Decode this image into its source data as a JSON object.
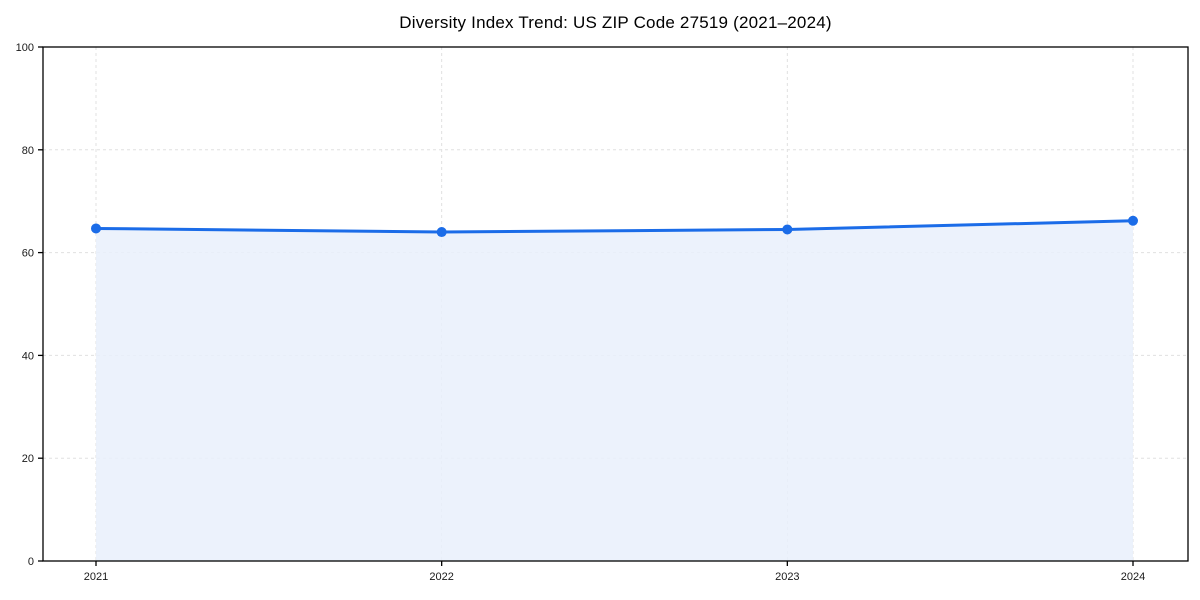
{
  "chart_data": {
    "type": "line",
    "title": "Diversity Index Trend: US ZIP Code 27519 (2021–2024)",
    "x": [
      "2021",
      "2022",
      "2023",
      "2024"
    ],
    "series": [
      {
        "name": "Diversity Index",
        "values": [
          64.7,
          64.0,
          64.5,
          66.2
        ]
      }
    ],
    "xlabel": "",
    "ylabel": "",
    "ylim": [
      0,
      100
    ],
    "yticks": [
      0,
      20,
      40,
      60,
      80,
      100
    ],
    "grid": true,
    "grid_style": "dashed",
    "legend": false,
    "area_fill": true,
    "marker": "circle",
    "colors": {
      "line": "#1b6ce8",
      "marker": "#1b6ce8",
      "fill": "#e9f0fc",
      "grid": "#e0e0e0",
      "axis": "#000000",
      "tick_text": "#1a1a1a",
      "title_text": "#000000"
    }
  }
}
